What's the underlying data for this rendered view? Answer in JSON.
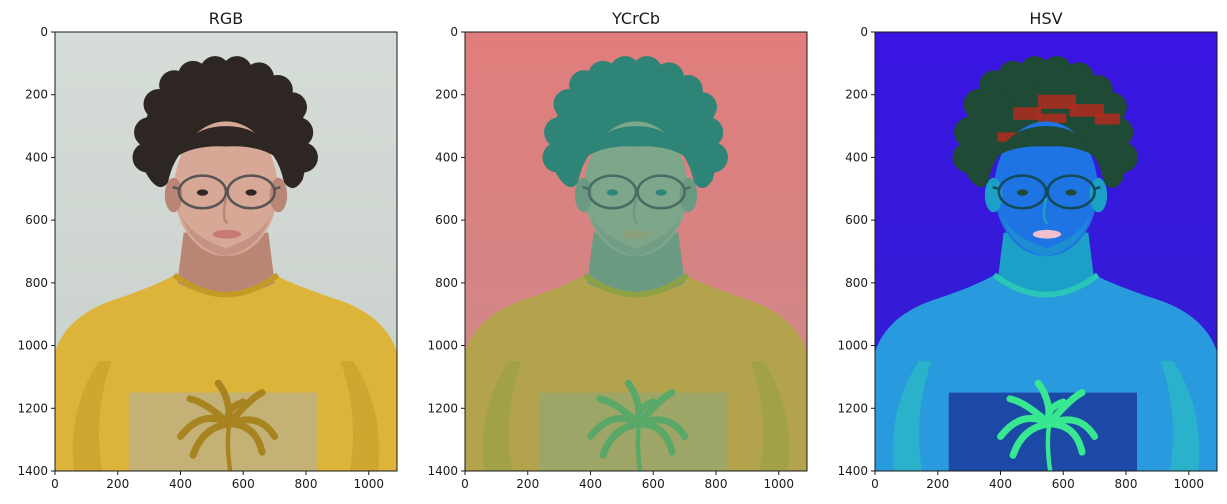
{
  "chart_data": [
    {
      "type": "image",
      "title": "RGB",
      "xlim": [
        0,
        1090
      ],
      "ylim": [
        1400,
        0
      ],
      "xticks": [
        0,
        200,
        400,
        600,
        800,
        1000
      ],
      "yticks": [
        0,
        200,
        400,
        600,
        800,
        1000,
        1200,
        1400
      ],
      "palette": {
        "background": "#d6ddd8",
        "background_edge": "#c8cfca",
        "shirt": "#dcb43a",
        "shirt_shadow": "#c49a26",
        "skin": "#d7a896",
        "skin_shadow": "#b98676",
        "hair": "#2e2622",
        "lips": "#c97878",
        "print_panel": "#c0b07c",
        "palm": "#a88420",
        "glasses": "#555555"
      }
    },
    {
      "type": "image",
      "title": "YCrCb",
      "xlim": [
        0,
        1090
      ],
      "ylim": [
        1400,
        0
      ],
      "xticks": [
        0,
        200,
        400,
        600,
        800,
        1000
      ],
      "yticks": [
        0,
        200,
        400,
        600,
        800,
        1000,
        1200,
        1400
      ],
      "palette": {
        "background": "#e07d7c",
        "background_edge": "#cc8a8a",
        "shirt": "#b3a34c",
        "shirt_shadow": "#8fa145",
        "skin": "#7ea68a",
        "skin_shadow": "#6a9a82",
        "hair": "#2f8478",
        "lips": "#8ba07a",
        "print_panel": "#9aa66a",
        "palm": "#5aa868",
        "glasses": "#4b6a64"
      }
    },
    {
      "type": "image",
      "title": "HSV",
      "xlim": [
        0,
        1090
      ],
      "ylim": [
        1400,
        0
      ],
      "xticks": [
        0,
        200,
        400,
        600,
        800,
        1000
      ],
      "yticks": [
        0,
        200,
        400,
        600,
        800,
        1000,
        1200,
        1400
      ],
      "palette": {
        "background": "#3a14e2",
        "background_edge": "#3020d0",
        "shirt": "#2a9adf",
        "shirt_shadow": "#2ac6b8",
        "skin": "#1e74e2",
        "skin_shadow": "#1ca0c8",
        "hair": "#1f4a36",
        "lips": "#f0c0d0",
        "print_panel": "#1b3fa0",
        "palm": "#38e890",
        "glasses": "#124a5a",
        "hair_highlight": "#b22a1e"
      }
    }
  ]
}
